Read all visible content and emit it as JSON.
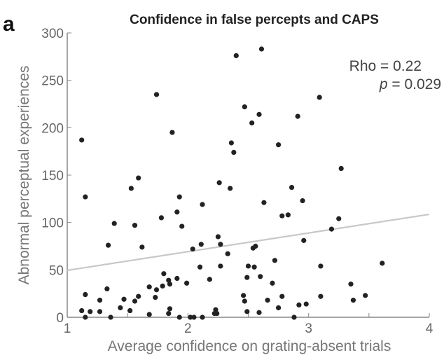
{
  "chart_data": {
    "type": "scatter",
    "panel_label": "a",
    "title": "Confidence in false percepts and CAPS",
    "xlabel": "Average confidence on grating-absent trials",
    "ylabel": "Abnormal perceptual experiences",
    "xlim": [
      1,
      4
    ],
    "ylim": [
      0,
      300
    ],
    "xticks": [
      "1",
      "2",
      "3",
      "4"
    ],
    "yticks": [
      "0",
      "50",
      "100",
      "150",
      "200",
      "250",
      "300"
    ],
    "grid": false,
    "annotations": {
      "rho": "Rho = 0.22",
      "p_symbol": "p",
      "p_value": " = 0.029"
    },
    "fit_line": {
      "x": [
        1,
        4
      ],
      "y": [
        49.5,
        108.6
      ]
    },
    "colors": {
      "points": "#222222",
      "fit_line": "#c8c8c8",
      "axes": "#888888"
    },
    "points": [
      [
        2.4,
        276
      ],
      [
        1.74,
        235
      ],
      [
        2.47,
        222
      ],
      [
        1.12,
        187
      ],
      [
        1.87,
        195
      ],
      [
        2.36,
        184
      ],
      [
        2.38,
        174
      ],
      [
        1.59,
        147
      ],
      [
        1.53,
        136
      ],
      [
        2.26,
        142
      ],
      [
        2.35,
        136
      ],
      [
        1.15,
        127
      ],
      [
        1.93,
        127
      ],
      [
        2.12,
        119
      ],
      [
        1.91,
        111
      ],
      [
        1.78,
        105
      ],
      [
        1.39,
        99
      ],
      [
        1.56,
        97
      ],
      [
        1.95,
        96
      ],
      [
        1.34,
        76
      ],
      [
        1.62,
        74
      ],
      [
        2.25,
        85
      ],
      [
        2.11,
        77
      ],
      [
        2.27,
        77
      ],
      [
        2.04,
        72
      ],
      [
        2.33,
        67
      ],
      [
        2.1,
        53
      ],
      [
        2.27,
        54
      ],
      [
        2.5,
        54
      ],
      [
        2.49,
        42
      ],
      [
        1.8,
        46
      ],
      [
        1.84,
        39
      ],
      [
        1.85,
        35
      ],
      [
        1.91,
        41
      ],
      [
        1.99,
        36
      ],
      [
        2.18,
        40
      ],
      [
        1.79,
        33
      ],
      [
        1.68,
        32
      ],
      [
        1.74,
        29
      ],
      [
        1.73,
        21
      ],
      [
        1.59,
        22
      ],
      [
        1.56,
        17
      ],
      [
        1.47,
        19
      ],
      [
        1.33,
        30
      ],
      [
        1.15,
        24
      ],
      [
        1.27,
        18
      ],
      [
        2.46,
        23
      ],
      [
        2.47,
        17
      ],
      [
        1.12,
        7
      ],
      [
        1.19,
        6
      ],
      [
        1.27,
        6
      ],
      [
        1.44,
        10
      ],
      [
        1.52,
        7
      ],
      [
        1.68,
        3
      ],
      [
        1.85,
        9
      ],
      [
        1.84,
        4
      ],
      [
        2.23,
        8
      ],
      [
        2.22,
        4
      ],
      [
        2.24,
        4
      ],
      [
        2.49,
        6
      ],
      [
        1.15,
        0
      ],
      [
        1.36,
        0
      ],
      [
        1.93,
        0
      ],
      [
        2.02,
        0
      ],
      [
        2.05,
        0
      ],
      [
        2.12,
        0
      ],
      [
        2.61,
        283
      ],
      [
        3.09,
        232
      ],
      [
        2.59,
        214
      ],
      [
        2.53,
        205
      ],
      [
        2.91,
        212
      ],
      [
        2.75,
        182
      ],
      [
        3.27,
        157
      ],
      [
        2.86,
        137
      ],
      [
        2.63,
        121
      ],
      [
        2.95,
        123
      ],
      [
        2.78,
        107
      ],
      [
        2.83,
        108
      ],
      [
        3.25,
        104
      ],
      [
        3.19,
        93
      ],
      [
        2.96,
        81
      ],
      [
        2.54,
        73
      ],
      [
        2.56,
        75
      ],
      [
        2.72,
        60
      ],
      [
        2.55,
        53
      ],
      [
        3.1,
        54
      ],
      [
        3.61,
        57
      ],
      [
        2.6,
        43
      ],
      [
        2.7,
        36
      ],
      [
        3.35,
        35
      ],
      [
        2.66,
        18
      ],
      [
        2.78,
        22
      ],
      [
        3.1,
        22
      ],
      [
        3.37,
        18
      ],
      [
        3.47,
        23
      ],
      [
        2.92,
        13
      ],
      [
        2.98,
        14
      ],
      [
        2.75,
        10
      ],
      [
        2.59,
        5
      ],
      [
        2.88,
        0
      ]
    ]
  }
}
